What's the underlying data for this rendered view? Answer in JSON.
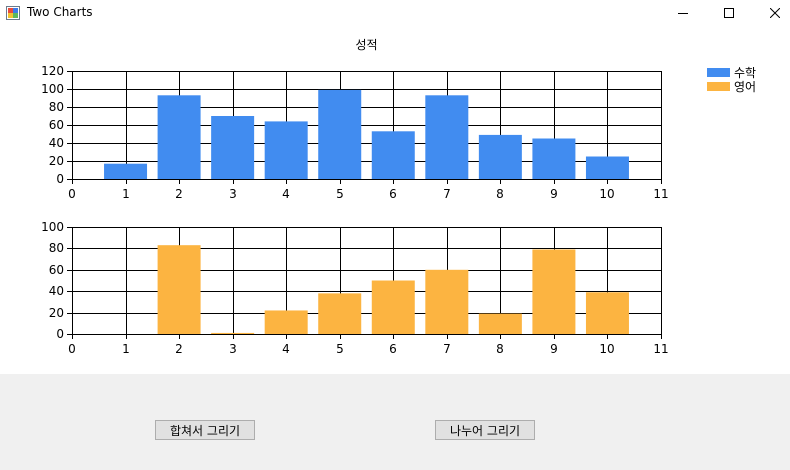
{
  "window": {
    "title": "Two Charts"
  },
  "controls": {
    "minimize_icon": "minimize-icon",
    "maximize_icon": "maximize-icon",
    "close_icon": "close-icon"
  },
  "chart_data": [
    {
      "type": "bar",
      "title": "성적",
      "xlim": [
        0,
        11
      ],
      "ylim": [
        0,
        120
      ],
      "x_ticks": [
        "0",
        "1",
        "2",
        "3",
        "4",
        "5",
        "6",
        "7",
        "8",
        "9",
        "10",
        "11"
      ],
      "y_ticks": [
        "0",
        "20",
        "40",
        "60",
        "80",
        "100",
        "120"
      ],
      "x": [
        1,
        2,
        3,
        4,
        5,
        6,
        7,
        8,
        9,
        10
      ],
      "series": [
        {
          "name": "수학",
          "color": "#418cf0",
          "values": [
            17,
            93,
            70,
            64,
            99,
            53,
            93,
            49,
            45,
            25
          ]
        }
      ],
      "grid": true,
      "legend_position": "top-right"
    },
    {
      "type": "bar",
      "xlim": [
        0,
        11
      ],
      "ylim": [
        0,
        100
      ],
      "x_ticks": [
        "0",
        "1",
        "2",
        "3",
        "4",
        "5",
        "6",
        "7",
        "8",
        "9",
        "10",
        "11"
      ],
      "y_ticks": [
        "0",
        "20",
        "40",
        "60",
        "80",
        "100"
      ],
      "x": [
        1,
        2,
        3,
        4,
        5,
        6,
        7,
        8,
        9,
        10
      ],
      "series": [
        {
          "name": "영어",
          "color": "#fcb441",
          "values": [
            0,
            83,
            1,
            22,
            38,
            50,
            60,
            19,
            79,
            39
          ]
        }
      ],
      "grid": true
    }
  ],
  "legend": {
    "items": [
      "수학",
      "영어"
    ]
  },
  "buttons": {
    "combined": "합쳐서 그리기",
    "split": "나누어 그리기"
  }
}
